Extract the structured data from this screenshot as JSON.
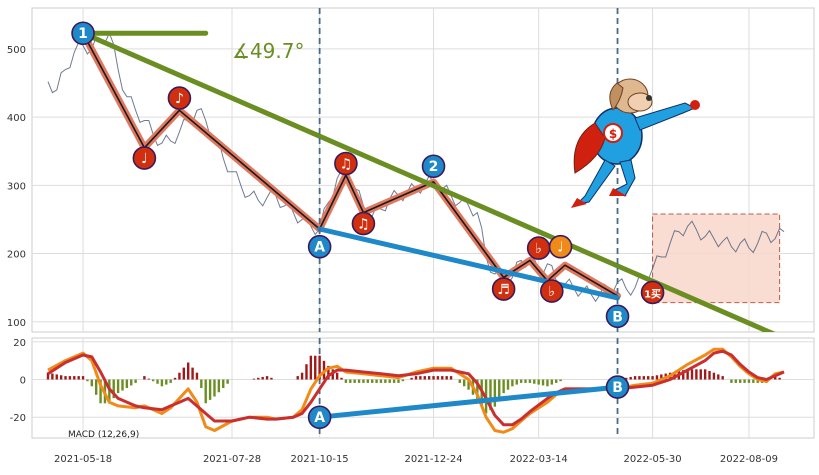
{
  "chart_data": {
    "type": "line",
    "colors": {
      "background": "#eaeaf2",
      "grid": "#ffffff",
      "price": "#4a5a78",
      "trend_line": "#6b8e23",
      "zigzag_outer": "#e07860",
      "zigzag_inner": "#1a1a1a",
      "blue_line": "#1e88c8",
      "vline": "#4a6a8a",
      "marker_red": "#d03010",
      "marker_blue": "#1e88c8",
      "marker_orange": "#f08a18",
      "box_fill": "#f8d8cc",
      "box_stroke": "#b04030",
      "macd_line": "#f08a18",
      "signal_line": "#c83030",
      "hist_pos": "#a01818",
      "hist_neg": "#6b8e23"
    },
    "x_ticks": [
      "2021-05-18",
      "2021-07-28",
      "2021-10-15",
      "2021-12-24",
      "2022-03-14",
      "2022-05-30",
      "2022-08-09"
    ],
    "price_panel": {
      "yticks": [
        100,
        200,
        300,
        400,
        500
      ],
      "ylim": [
        85,
        560
      ],
      "angle_label": "∡49.7°",
      "price_series": [
        [
          0,
          452
        ],
        [
          2,
          440
        ],
        [
          4,
          470
        ],
        [
          6,
          495
        ],
        [
          8,
          505
        ],
        [
          10,
          500
        ],
        [
          12,
          515
        ],
        [
          14,
          523
        ],
        [
          16,
          470
        ],
        [
          18,
          430
        ],
        [
          20,
          410
        ],
        [
          22,
          395
        ],
        [
          24,
          375
        ],
        [
          26,
          362
        ],
        [
          28,
          365
        ],
        [
          30,
          378
        ],
        [
          32,
          395
        ],
        [
          34,
          410
        ],
        [
          36,
          395
        ],
        [
          38,
          370
        ],
        [
          40,
          340
        ],
        [
          42,
          320
        ],
        [
          44,
          300
        ],
        [
          46,
          285
        ],
        [
          48,
          278
        ],
        [
          50,
          282
        ],
        [
          52,
          285
        ],
        [
          54,
          270
        ],
        [
          56,
          260
        ],
        [
          58,
          250
        ],
        [
          60,
          240
        ],
        [
          62,
          236
        ],
        [
          64,
          275
        ],
        [
          66,
          310
        ],
        [
          68,
          315
        ],
        [
          70,
          295
        ],
        [
          72,
          270
        ],
        [
          74,
          255
        ],
        [
          76,
          265
        ],
        [
          78,
          280
        ],
        [
          80,
          285
        ],
        [
          82,
          290
        ],
        [
          84,
          295
        ],
        [
          86,
          302
        ],
        [
          88,
          305
        ],
        [
          90,
          295
        ],
        [
          92,
          285
        ],
        [
          94,
          275
        ],
        [
          96,
          270
        ],
        [
          98,
          260
        ],
        [
          100,
          195
        ],
        [
          102,
          170
        ],
        [
          104,
          165
        ],
        [
          106,
          165
        ],
        [
          108,
          190
        ],
        [
          110,
          190
        ],
        [
          112,
          175
        ],
        [
          114,
          185
        ],
        [
          116,
          160
        ],
        [
          118,
          155
        ],
        [
          120,
          150
        ],
        [
          122,
          145
        ],
        [
          124,
          140
        ],
        [
          126,
          140
        ],
        [
          128,
          150
        ],
        [
          130,
          158
        ],
        [
          132,
          148
        ],
        [
          134,
          150
        ],
        [
          136,
          165
        ],
        [
          138,
          178
        ],
        [
          140,
          195
        ],
        [
          142,
          215
        ],
        [
          144,
          232
        ],
        [
          146,
          240
        ],
        [
          148,
          235
        ],
        [
          150,
          225
        ],
        [
          152,
          222
        ],
        [
          154,
          218
        ],
        [
          156,
          210
        ],
        [
          158,
          215
        ],
        [
          160,
          208
        ],
        [
          162,
          215
        ],
        [
          164,
          230
        ],
        [
          166,
          222
        ],
        [
          168,
          232
        ]
      ],
      "trend_line": [
        [
          8,
          523
        ],
        [
          170,
          70
        ]
      ],
      "horizontal_arm": [
        [
          8,
          523
        ],
        [
          36,
          523
        ]
      ],
      "zigzag": [
        [
          8,
          523
        ],
        [
          22,
          355
        ],
        [
          30,
          410
        ],
        [
          62,
          236
        ],
        [
          68,
          315
        ],
        [
          72,
          260
        ],
        [
          88,
          305
        ],
        [
          104,
          165
        ],
        [
          110,
          190
        ],
        [
          114,
          160
        ],
        [
          118,
          183
        ],
        [
          130,
          138
        ]
      ],
      "blue_line": [
        [
          62,
          236
        ],
        [
          130,
          135
        ]
      ],
      "vlines": [
        62,
        130
      ],
      "box": {
        "x": [
          138,
          167
        ],
        "y": [
          128,
          258
        ]
      },
      "markers": [
        {
          "label": "1",
          "x": 8,
          "y": 523,
          "color": "blue"
        },
        {
          "label": "♩",
          "x": 22,
          "y": 340,
          "color": "red"
        },
        {
          "label": "♪",
          "x": 30,
          "y": 428,
          "color": "red"
        },
        {
          "label": "A",
          "x": 62,
          "y": 210,
          "color": "blue"
        },
        {
          "label": "♫",
          "x": 68,
          "y": 332,
          "color": "red"
        },
        {
          "label": "♫",
          "x": 72,
          "y": 244,
          "color": "red"
        },
        {
          "label": "2",
          "x": 88,
          "y": 328,
          "color": "blue"
        },
        {
          "label": "♬",
          "x": 104,
          "y": 148,
          "color": "red"
        },
        {
          "label": "♭",
          "x": 112,
          "y": 208,
          "color": "red"
        },
        {
          "label": "♩",
          "x": 117,
          "y": 210,
          "color": "orange"
        },
        {
          "label": "♭",
          "x": 115,
          "y": 145,
          "color": "red"
        },
        {
          "label": "B",
          "x": 130,
          "y": 108,
          "color": "blue"
        },
        {
          "label": "1买",
          "x": 138,
          "y": 143,
          "color": "red"
        }
      ]
    },
    "macd_panel": {
      "legend": "MACD (12,26,9)",
      "yticks": [
        -20,
        0,
        20
      ],
      "ylim": [
        -31,
        22
      ],
      "macd": [
        [
          0,
          5
        ],
        [
          4,
          10
        ],
        [
          8,
          14
        ],
        [
          10,
          10
        ],
        [
          12,
          -3
        ],
        [
          14,
          -12
        ],
        [
          16,
          -14
        ],
        [
          20,
          -15
        ],
        [
          22,
          -14
        ],
        [
          26,
          -18
        ],
        [
          28,
          -15
        ],
        [
          30,
          -10
        ],
        [
          32,
          -5
        ],
        [
          34,
          -12
        ],
        [
          36,
          -25
        ],
        [
          38,
          -27
        ],
        [
          42,
          -22
        ],
        [
          46,
          -20
        ],
        [
          50,
          -20
        ],
        [
          52,
          -21
        ],
        [
          56,
          -20
        ],
        [
          58,
          -16
        ],
        [
          60,
          -5
        ],
        [
          62,
          2
        ],
        [
          64,
          6
        ],
        [
          66,
          7
        ],
        [
          68,
          4
        ],
        [
          72,
          3
        ],
        [
          76,
          2
        ],
        [
          80,
          1
        ],
        [
          84,
          4
        ],
        [
          88,
          6
        ],
        [
          92,
          6
        ],
        [
          96,
          0
        ],
        [
          98,
          -8
        ],
        [
          100,
          -20
        ],
        [
          102,
          -27
        ],
        [
          104,
          -28
        ],
        [
          106,
          -26
        ],
        [
          108,
          -22
        ],
        [
          110,
          -18
        ],
        [
          114,
          -12
        ],
        [
          116,
          -8
        ],
        [
          118,
          -5
        ],
        [
          122,
          -5
        ],
        [
          126,
          -5
        ],
        [
          130,
          -5
        ],
        [
          134,
          -3
        ],
        [
          138,
          -2
        ],
        [
          142,
          2
        ],
        [
          146,
          8
        ],
        [
          150,
          13
        ],
        [
          152,
          16
        ],
        [
          154,
          16
        ],
        [
          156,
          12
        ],
        [
          158,
          7
        ],
        [
          160,
          3
        ],
        [
          162,
          0
        ],
        [
          164,
          -1
        ],
        [
          166,
          3
        ],
        [
          168,
          4
        ]
      ],
      "signal": [
        [
          0,
          3
        ],
        [
          4,
          9
        ],
        [
          8,
          13
        ],
        [
          10,
          12
        ],
        [
          12,
          4
        ],
        [
          14,
          -5
        ],
        [
          16,
          -10
        ],
        [
          20,
          -14
        ],
        [
          22,
          -15
        ],
        [
          26,
          -16
        ],
        [
          28,
          -14
        ],
        [
          30,
          -12
        ],
        [
          32,
          -10
        ],
        [
          36,
          -18
        ],
        [
          38,
          -22
        ],
        [
          42,
          -22
        ],
        [
          46,
          -20
        ],
        [
          50,
          -21
        ],
        [
          52,
          -21
        ],
        [
          56,
          -20
        ],
        [
          58,
          -18
        ],
        [
          60,
          -12
        ],
        [
          62,
          -5
        ],
        [
          64,
          2
        ],
        [
          66,
          5
        ],
        [
          68,
          5
        ],
        [
          72,
          4
        ],
        [
          76,
          3
        ],
        [
          80,
          2
        ],
        [
          84,
          3
        ],
        [
          88,
          5
        ],
        [
          92,
          5
        ],
        [
          96,
          3
        ],
        [
          98,
          -2
        ],
        [
          100,
          -10
        ],
        [
          102,
          -19
        ],
        [
          104,
          -24
        ],
        [
          106,
          -24
        ],
        [
          108,
          -21
        ],
        [
          110,
          -17
        ],
        [
          114,
          -10
        ],
        [
          116,
          -7
        ],
        [
          118,
          -5
        ],
        [
          122,
          -5
        ],
        [
          126,
          -5
        ],
        [
          130,
          -5
        ],
        [
          134,
          -4
        ],
        [
          138,
          -3
        ],
        [
          142,
          0
        ],
        [
          146,
          5
        ],
        [
          150,
          10
        ],
        [
          152,
          14
        ],
        [
          154,
          15
        ],
        [
          156,
          13
        ],
        [
          158,
          8
        ],
        [
          160,
          4
        ],
        [
          162,
          1
        ],
        [
          164,
          0
        ],
        [
          166,
          2
        ],
        [
          168,
          4
        ]
      ],
      "blue_line": [
        [
          62,
          -20
        ],
        [
          130,
          -4
        ]
      ],
      "markers": [
        {
          "label": "A",
          "x": 62,
          "y": -20,
          "color": "blue"
        },
        {
          "label": "B",
          "x": 130,
          "y": -4,
          "color": "blue"
        }
      ]
    }
  }
}
